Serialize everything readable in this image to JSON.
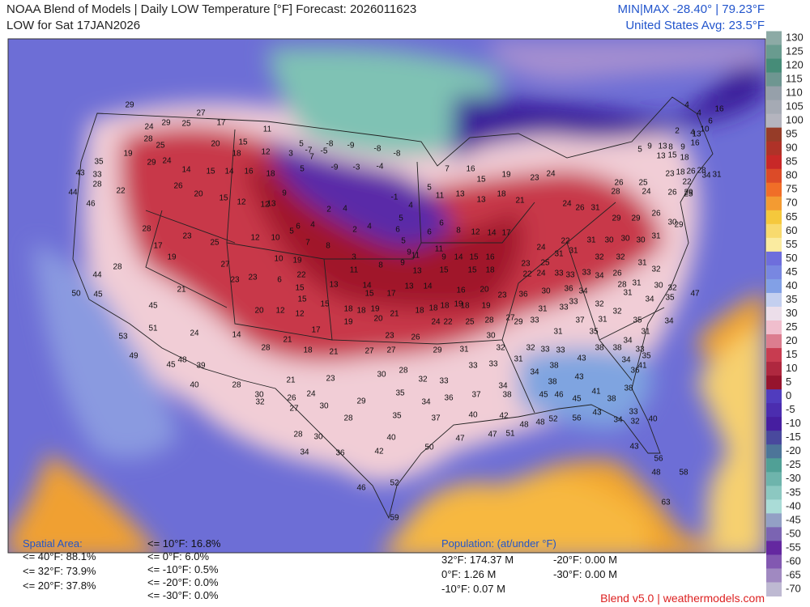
{
  "header": {
    "title": "NOAA Blend of Models | Daily LOW Temperature [°F] Forecast: 2026011623",
    "subtitle": "LOW for Sat 17JAN2026",
    "minmax": "MIN|MAX -28.40°  |  79.23°F",
    "average": "United States Avg: 23.5°F"
  },
  "colorbar": {
    "ticks": [
      130,
      125,
      120,
      115,
      110,
      105,
      100,
      95,
      90,
      85,
      80,
      75,
      70,
      65,
      60,
      55,
      50,
      45,
      40,
      35,
      30,
      25,
      20,
      15,
      10,
      5,
      0,
      -5,
      -10,
      -15,
      -20,
      -25,
      -30,
      -35,
      -40,
      -45,
      -50,
      -55,
      -60,
      -65,
      -70
    ]
  },
  "spatial_area": {
    "title": "Spatial Area:",
    "items": [
      "<= 40°F: 88.1%",
      "<= 32°F: 73.9%",
      "<= 20°F: 37.8%",
      "<= 10°F: 16.8%",
      "<= 0°F: 6.0%",
      "<= -10°F: 0.5%",
      "<= -20°F: 0.0%",
      "<= -30°F: 0.0%"
    ]
  },
  "population": {
    "title": "Population: (at/under °F)",
    "items": [
      "32°F: 174.37 M",
      "0°F: 1.26 M",
      "-10°F: 0.07 M",
      "-20°F: 0.00 M",
      "-30°F: 0.00 M"
    ]
  },
  "footer": "Blend v5.0 | weathermodels.com",
  "stations": [
    "29",
    "24",
    "29",
    "25",
    "27",
    "28",
    "25",
    "19",
    "29",
    "24",
    "35",
    "33",
    "43",
    "28",
    "44",
    "22",
    "46",
    "17",
    "20",
    "18",
    "15",
    "11",
    "12",
    "3",
    "5",
    "-7",
    "-5",
    "-8",
    "-9",
    "-8",
    "-8",
    "-9",
    "-3",
    "-4",
    "14",
    "16",
    "18",
    "5",
    "7",
    "15",
    "14",
    "26",
    "20",
    "15",
    "12",
    "12",
    "9",
    "13",
    "2",
    "4",
    "2",
    "4",
    "-1",
    "4",
    "5",
    "6",
    "5",
    "9",
    "7",
    "16",
    "15",
    "19",
    "23",
    "24",
    "5",
    "11",
    "13",
    "13",
    "18",
    "21",
    "28",
    "17",
    "19",
    "23",
    "25",
    "27",
    "23",
    "23",
    "12",
    "10",
    "5",
    "6",
    "4",
    "7",
    "10",
    "19",
    "6",
    "22",
    "8",
    "15",
    "15",
    "15",
    "13",
    "3",
    "11",
    "8",
    "9",
    "11",
    "6",
    "6",
    "8",
    "12",
    "14",
    "17",
    "9",
    "14",
    "11",
    "15",
    "16",
    "13",
    "15",
    "15",
    "18",
    "14",
    "15",
    "17",
    "13",
    "14",
    "16",
    "20",
    "23",
    "18",
    "19",
    "18",
    "19",
    "20",
    "12",
    "12",
    "18",
    "18",
    "19",
    "21",
    "18",
    "18",
    "19",
    "20",
    "21",
    "45",
    "51",
    "24",
    "14",
    "17",
    "21",
    "28",
    "18",
    "21",
    "27",
    "27",
    "23",
    "26",
    "29",
    "24",
    "22",
    "25",
    "28",
    "30",
    "31",
    "28",
    "30",
    "32",
    "33",
    "33",
    "33",
    "34",
    "31",
    "27",
    "32",
    "32",
    "33",
    "33",
    "43",
    "38",
    "38",
    "34",
    "38",
    "43",
    "34",
    "38",
    "46",
    "45",
    "45",
    "41",
    "38",
    "38",
    "38",
    "37",
    "36",
    "34",
    "35",
    "35",
    "29",
    "28",
    "30",
    "26",
    "21",
    "23",
    "24",
    "27",
    "30",
    "32",
    "28",
    "40",
    "45",
    "48",
    "39",
    "49",
    "53",
    "45",
    "50",
    "44",
    "28",
    "28",
    "30",
    "34",
    "36",
    "42",
    "40",
    "37",
    "40",
    "50",
    "47",
    "47",
    "42",
    "51",
    "48",
    "48",
    "52",
    "56",
    "43",
    "34",
    "32",
    "40",
    "33",
    "43",
    "56",
    "58",
    "48",
    "63",
    "46",
    "52",
    "59",
    "24",
    "26",
    "31",
    "28",
    "26",
    "25",
    "24",
    "26",
    "29",
    "29",
    "29",
    "26",
    "30",
    "29",
    "31",
    "30",
    "30",
    "30",
    "31",
    "22",
    "24",
    "23",
    "31",
    "31",
    "32",
    "32",
    "31",
    "32",
    "25",
    "22",
    "24",
    "33",
    "33",
    "33",
    "34",
    "26",
    "28",
    "31",
    "30",
    "32",
    "47",
    "36",
    "30",
    "36",
    "34",
    "33",
    "32",
    "31",
    "34",
    "35",
    "31",
    "33",
    "37",
    "31",
    "32",
    "35",
    "34",
    "29",
    "33",
    "31",
    "35",
    "31",
    "34",
    "33",
    "35",
    "41",
    "36",
    "2",
    "4",
    "10",
    "6",
    "4",
    "4",
    "16",
    "5",
    "9",
    "13",
    "8",
    "9",
    "13",
    "16",
    "18",
    "15",
    "13",
    "23",
    "18",
    "26",
    "28",
    "31",
    "34",
    "22",
    "25"
  ]
}
